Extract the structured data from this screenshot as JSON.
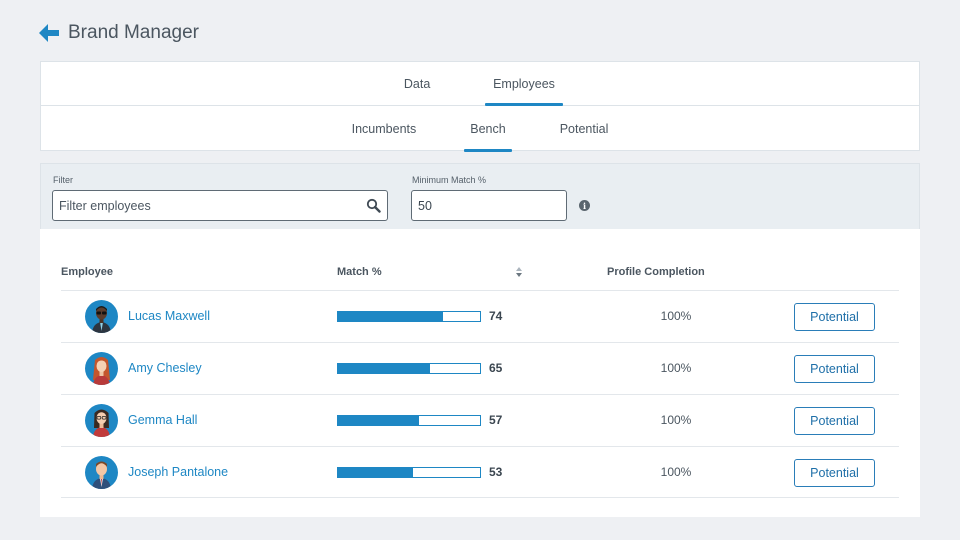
{
  "header": {
    "title": "Brand Manager",
    "back_icon": "arrow-left-icon"
  },
  "primary_tabs": [
    {
      "label": "Data",
      "active": false
    },
    {
      "label": "Employees",
      "active": true
    }
  ],
  "secondary_tabs": [
    {
      "label": "Incumbents",
      "active": false
    },
    {
      "label": "Bench",
      "active": true
    },
    {
      "label": "Potential",
      "active": false
    }
  ],
  "filters": {
    "filter_label": "Filter",
    "filter_placeholder": "Filter employees",
    "filter_value": "",
    "min_match_label": "Minimum Match %",
    "min_match_value": "50"
  },
  "table": {
    "headers": {
      "employee": "Employee",
      "match": "Match %",
      "profile": "Profile Completion"
    },
    "rows": [
      {
        "name": "Lucas Maxwell",
        "match": 74,
        "completion": "100%",
        "action": "Potential"
      },
      {
        "name": "Amy Chesley",
        "match": 65,
        "completion": "100%",
        "action": "Potential"
      },
      {
        "name": "Gemma Hall",
        "match": 57,
        "completion": "100%",
        "action": "Potential"
      },
      {
        "name": "Joseph Pantalone",
        "match": 53,
        "completion": "100%",
        "action": "Potential"
      }
    ]
  },
  "colors": {
    "accent": "#1e87c4",
    "background": "#eef0f3",
    "filter_panel": "#e9eef2"
  }
}
